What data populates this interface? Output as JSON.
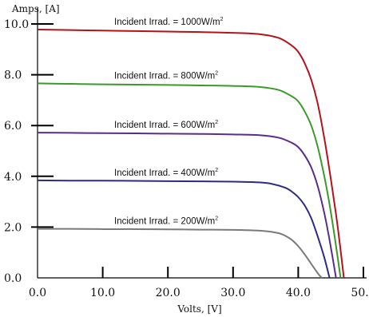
{
  "chart_data": {
    "type": "line",
    "title": "",
    "xlabel": "Volts, [V]",
    "ylabel": "Amps, [A]",
    "xlim": [
      0,
      50
    ],
    "ylim": [
      0,
      10
    ],
    "x_ticks": [
      "0.0",
      "10.0",
      "20.0",
      "30.0",
      "40.0",
      "50.0"
    ],
    "y_ticks": [
      "0.0",
      "2.0",
      "4.0",
      "6.0",
      "8.0",
      "10.0"
    ],
    "grid": false,
    "legend": "none",
    "series": [
      {
        "name": "Incident Irrad. = 1000W/m",
        "name_sup": "2",
        "color": "#b5121b",
        "points": [
          [
            0,
            9.78
          ],
          [
            5,
            9.76
          ],
          [
            10,
            9.74
          ],
          [
            15,
            9.72
          ],
          [
            20,
            9.7
          ],
          [
            25,
            9.68
          ],
          [
            30,
            9.65
          ],
          [
            34,
            9.6
          ],
          [
            37,
            9.45
          ],
          [
            39,
            9.15
          ],
          [
            40,
            8.9
          ],
          [
            41,
            8.45
          ],
          [
            42,
            7.8
          ],
          [
            43,
            6.85
          ],
          [
            44,
            5.5
          ],
          [
            45,
            3.9
          ],
          [
            45.8,
            2.5
          ],
          [
            46.4,
            1.3
          ],
          [
            47,
            0.0
          ]
        ]
      },
      {
        "name": "Incident Irrad. = 800W/m",
        "name_sup": "2",
        "color": "#3a9a2a",
        "points": [
          [
            0,
            7.66
          ],
          [
            5,
            7.64
          ],
          [
            10,
            7.62
          ],
          [
            15,
            7.61
          ],
          [
            20,
            7.6
          ],
          [
            25,
            7.58
          ],
          [
            30,
            7.56
          ],
          [
            34,
            7.52
          ],
          [
            37,
            7.4
          ],
          [
            39,
            7.15
          ],
          [
            40,
            6.95
          ],
          [
            41,
            6.55
          ],
          [
            42,
            6.0
          ],
          [
            43,
            5.15
          ],
          [
            44,
            4.0
          ],
          [
            44.8,
            2.9
          ],
          [
            45.6,
            1.6
          ],
          [
            46.5,
            0.0
          ]
        ]
      },
      {
        "name": "Incident Irrad. = 600W/m",
        "name_sup": "2",
        "color": "#5b2c8c",
        "points": [
          [
            0,
            5.72
          ],
          [
            5,
            5.71
          ],
          [
            10,
            5.7
          ],
          [
            15,
            5.69
          ],
          [
            20,
            5.68
          ],
          [
            25,
            5.67
          ],
          [
            30,
            5.65
          ],
          [
            34,
            5.62
          ],
          [
            37,
            5.52
          ],
          [
            39,
            5.32
          ],
          [
            40,
            5.15
          ],
          [
            41,
            4.82
          ],
          [
            42,
            4.35
          ],
          [
            43,
            3.6
          ],
          [
            44,
            2.55
          ],
          [
            44.8,
            1.5
          ],
          [
            45.8,
            0.0
          ]
        ]
      },
      {
        "name": "Incident Irrad. = 400W/m",
        "name_sup": "2",
        "color": "#2e2a86",
        "points": [
          [
            0,
            3.84
          ],
          [
            5,
            3.83
          ],
          [
            10,
            3.83
          ],
          [
            15,
            3.82
          ],
          [
            20,
            3.81
          ],
          [
            25,
            3.8
          ],
          [
            30,
            3.79
          ],
          [
            34,
            3.76
          ],
          [
            36,
            3.7
          ],
          [
            38,
            3.55
          ],
          [
            39,
            3.4
          ],
          [
            40,
            3.18
          ],
          [
            41,
            2.85
          ],
          [
            42,
            2.35
          ],
          [
            43,
            1.62
          ],
          [
            44,
            0.8
          ],
          [
            44.8,
            0.0
          ]
        ]
      },
      {
        "name": "Incident Irrad. = 200W/m",
        "name_sup": "2",
        "color": "#7a7a7a",
        "points": [
          [
            0,
            1.93
          ],
          [
            5,
            1.93
          ],
          [
            10,
            1.92
          ],
          [
            15,
            1.92
          ],
          [
            20,
            1.91
          ],
          [
            25,
            1.9
          ],
          [
            30,
            1.89
          ],
          [
            33,
            1.87
          ],
          [
            35,
            1.84
          ],
          [
            37,
            1.76
          ],
          [
            38,
            1.66
          ],
          [
            39,
            1.5
          ],
          [
            40,
            1.25
          ],
          [
            41,
            0.92
          ],
          [
            42,
            0.55
          ],
          [
            43,
            0.18
          ],
          [
            43.6,
            0.0
          ]
        ]
      }
    ]
  }
}
